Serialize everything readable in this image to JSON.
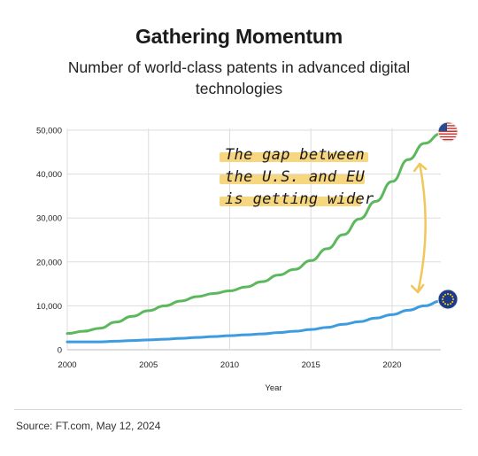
{
  "header": {
    "title": "Gathering Momentum",
    "subtitle": "Number of world-class patents in advanced digital technologies"
  },
  "footer": {
    "source": "Source: FT.com, May 12, 2024"
  },
  "annotation": {
    "lines": [
      "The gap between",
      "the U.S. and EU",
      "is getting wider"
    ],
    "highlight_color": "#f6cf6a"
  },
  "colors": {
    "us_series": "#5cb85c",
    "eu_series": "#3d9be0",
    "arrow": "#f1c65a",
    "grid": "#dddddd"
  },
  "chart_data": {
    "type": "line",
    "xlabel": "Year",
    "ylabel": "",
    "xlim": [
      2000,
      2023
    ],
    "ylim": [
      0,
      50000
    ],
    "xticks": [
      2000,
      2005,
      2010,
      2015,
      2020
    ],
    "yticks": [
      0,
      10000,
      20000,
      30000,
      40000,
      50000
    ],
    "ytick_labels": [
      "0",
      "10,000",
      "20,000",
      "30,000",
      "40,000",
      "50,000"
    ],
    "grid": true,
    "series": [
      {
        "icon": "us-flag-icon",
        "x": [
          2000,
          2001,
          2002,
          2003,
          2004,
          2005,
          2006,
          2007,
          2008,
          2009,
          2010,
          2011,
          2012,
          2013,
          2014,
          2015,
          2016,
          2017,
          2018,
          2019,
          2020,
          2021,
          2022,
          2023
        ],
        "values": [
          3700,
          4200,
          4900,
          6300,
          7600,
          8900,
          10000,
          11100,
          12100,
          12800,
          13400,
          14300,
          15500,
          17000,
          18300,
          20300,
          23000,
          26200,
          29800,
          33800,
          38300,
          43300,
          47000,
          49200
        ]
      },
      {
        "icon": "eu-flag-icon",
        "x": [
          2000,
          2001,
          2002,
          2003,
          2004,
          2005,
          2006,
          2007,
          2008,
          2009,
          2010,
          2011,
          2012,
          2013,
          2014,
          2015,
          2016,
          2017,
          2018,
          2019,
          2020,
          2021,
          2022,
          2023
        ],
        "values": [
          1800,
          1800,
          1800,
          1950,
          2100,
          2250,
          2400,
          2600,
          2800,
          3000,
          3200,
          3400,
          3600,
          3900,
          4200,
          4600,
          5100,
          5800,
          6400,
          7200,
          8000,
          9000,
          10000,
          11100
        ]
      }
    ]
  }
}
